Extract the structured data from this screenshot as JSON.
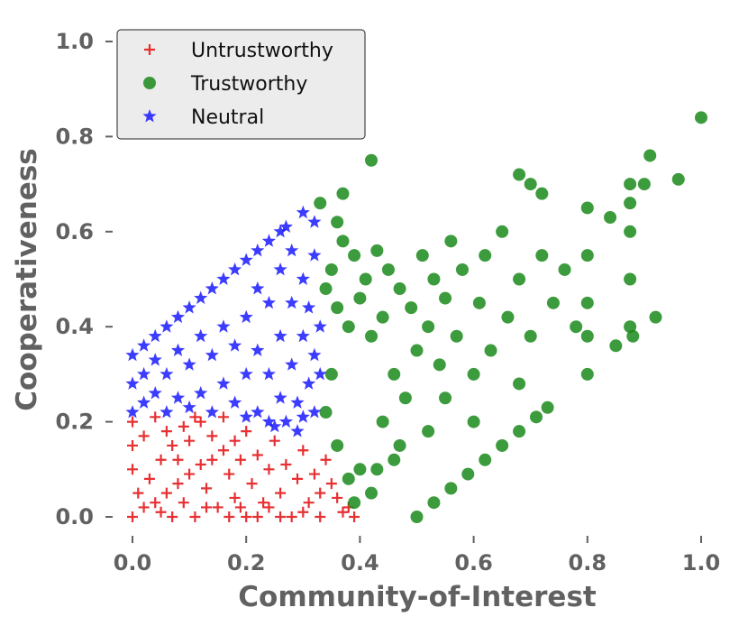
{
  "chart_data": {
    "type": "scatter",
    "title": "",
    "xlabel": "Community-of-Interest",
    "ylabel": "Cooperativeness",
    "xlim": [
      -0.03,
      1.03
    ],
    "ylim": [
      -0.03,
      1.03
    ],
    "xticks": [
      0.0,
      0.2,
      0.4,
      0.6,
      0.8,
      1.0
    ],
    "yticks": [
      0.0,
      0.2,
      0.4,
      0.6,
      0.8,
      1.0
    ],
    "xtick_labels": [
      "0.0",
      "0.2",
      "0.4",
      "0.6",
      "0.8",
      "1.0"
    ],
    "ytick_labels": [
      "0.0",
      "0.2",
      "0.4",
      "0.6",
      "0.8",
      "1.0"
    ],
    "grid": false,
    "legend_position": "top-left",
    "series": [
      {
        "name": "Untrustworthy",
        "marker": "plus",
        "color": "#e41a1c",
        "description": "dense cluster, x 0.0-0.39, y 0.0-0.22, plus diagonal band from (0,0) to (0.2,0.18)",
        "points": [
          [
            0.0,
            0.0
          ],
          [
            0.02,
            0.02
          ],
          [
            0.04,
            0.03
          ],
          [
            0.06,
            0.05
          ],
          [
            0.08,
            0.07
          ],
          [
            0.1,
            0.09
          ],
          [
            0.12,
            0.11
          ],
          [
            0.14,
            0.12
          ],
          [
            0.16,
            0.14
          ],
          [
            0.18,
            0.16
          ],
          [
            0.2,
            0.18
          ],
          [
            0.01,
            0.05
          ],
          [
            0.03,
            0.08
          ],
          [
            0.05,
            0.12
          ],
          [
            0.07,
            0.15
          ],
          [
            0.09,
            0.19
          ],
          [
            0.11,
            0.21
          ],
          [
            0.0,
            0.1
          ],
          [
            0.0,
            0.15
          ],
          [
            0.0,
            0.2
          ],
          [
            0.02,
            0.17
          ],
          [
            0.04,
            0.21
          ],
          [
            0.06,
            0.18
          ],
          [
            0.08,
            0.12
          ],
          [
            0.1,
            0.16
          ],
          [
            0.12,
            0.2
          ],
          [
            0.13,
            0.06
          ],
          [
            0.14,
            0.17
          ],
          [
            0.15,
            0.02
          ],
          [
            0.16,
            0.21
          ],
          [
            0.17,
            0.09
          ],
          [
            0.18,
            0.04
          ],
          [
            0.19,
            0.12
          ],
          [
            0.2,
            0.0
          ],
          [
            0.21,
            0.07
          ],
          [
            0.22,
            0.13
          ],
          [
            0.23,
            0.03
          ],
          [
            0.24,
            0.1
          ],
          [
            0.25,
            0.16
          ],
          [
            0.26,
            0.05
          ],
          [
            0.27,
            0.11
          ],
          [
            0.28,
            0.0
          ],
          [
            0.29,
            0.08
          ],
          [
            0.3,
            0.14
          ],
          [
            0.31,
            0.03
          ],
          [
            0.32,
            0.09
          ],
          [
            0.33,
            0.05
          ],
          [
            0.34,
            0.12
          ],
          [
            0.35,
            0.07
          ],
          [
            0.36,
            0.04
          ],
          [
            0.37,
            0.01
          ],
          [
            0.38,
            0.02
          ],
          [
            0.39,
            0.0
          ],
          [
            0.05,
            0.01
          ],
          [
            0.07,
            0.0
          ],
          [
            0.09,
            0.03
          ],
          [
            0.11,
            0.0
          ],
          [
            0.13,
            0.02
          ],
          [
            0.17,
            0.0
          ],
          [
            0.19,
            0.02
          ],
          [
            0.22,
            0.0
          ],
          [
            0.24,
            0.02
          ],
          [
            0.26,
            0.0
          ],
          [
            0.3,
            0.01
          ],
          [
            0.33,
            0.0
          ]
        ]
      },
      {
        "name": "Trustworthy",
        "marker": "circle",
        "color": "#1a8a1a",
        "description": "dense cluster, x 0.31-0.92, y 0.0-0.84, diagonal band from (0.5,0) to (0.73,0.23), vertical stripes at x 0.8 and 0.875",
        "points": [
          [
            0.5,
            0.0
          ],
          [
            0.53,
            0.03
          ],
          [
            0.56,
            0.06
          ],
          [
            0.59,
            0.09
          ],
          [
            0.62,
            0.12
          ],
          [
            0.65,
            0.15
          ],
          [
            0.68,
            0.18
          ],
          [
            0.71,
            0.21
          ],
          [
            0.73,
            0.23
          ],
          [
            0.34,
            0.48
          ],
          [
            0.35,
            0.52
          ],
          [
            0.36,
            0.44
          ],
          [
            0.37,
            0.58
          ],
          [
            0.38,
            0.4
          ],
          [
            0.39,
            0.55
          ],
          [
            0.4,
            0.46
          ],
          [
            0.41,
            0.5
          ],
          [
            0.42,
            0.38
          ],
          [
            0.43,
            0.56
          ],
          [
            0.44,
            0.42
          ],
          [
            0.45,
            0.52
          ],
          [
            0.46,
            0.3
          ],
          [
            0.47,
            0.48
          ],
          [
            0.48,
            0.25
          ],
          [
            0.49,
            0.44
          ],
          [
            0.5,
            0.35
          ],
          [
            0.51,
            0.55
          ],
          [
            0.52,
            0.4
          ],
          [
            0.53,
            0.5
          ],
          [
            0.54,
            0.32
          ],
          [
            0.55,
            0.46
          ],
          [
            0.56,
            0.58
          ],
          [
            0.57,
            0.38
          ],
          [
            0.58,
            0.52
          ],
          [
            0.6,
            0.3
          ],
          [
            0.61,
            0.45
          ],
          [
            0.62,
            0.55
          ],
          [
            0.63,
            0.35
          ],
          [
            0.65,
            0.6
          ],
          [
            0.66,
            0.42
          ],
          [
            0.68,
            0.5
          ],
          [
            0.7,
            0.38
          ],
          [
            0.72,
            0.55
          ],
          [
            0.74,
            0.45
          ],
          [
            0.76,
            0.52
          ],
          [
            0.78,
            0.4
          ],
          [
            0.8,
            0.3
          ],
          [
            0.8,
            0.38
          ],
          [
            0.8,
            0.45
          ],
          [
            0.8,
            0.55
          ],
          [
            0.8,
            0.65
          ],
          [
            0.875,
            0.4
          ],
          [
            0.875,
            0.5
          ],
          [
            0.875,
            0.6
          ],
          [
            0.875,
            0.66
          ],
          [
            0.875,
            0.7
          ],
          [
            0.9,
            0.7
          ],
          [
            0.91,
            0.76
          ],
          [
            0.92,
            0.42
          ],
          [
            0.96,
            0.71
          ],
          [
            1.0,
            0.84
          ],
          [
            0.42,
            0.75
          ],
          [
            0.37,
            0.68
          ],
          [
            0.33,
            0.66
          ],
          [
            0.36,
            0.62
          ],
          [
            0.44,
            0.2
          ],
          [
            0.4,
            0.1
          ],
          [
            0.42,
            0.05
          ],
          [
            0.38,
            0.08
          ],
          [
            0.46,
            0.12
          ],
          [
            0.52,
            0.18
          ],
          [
            0.55,
            0.25
          ],
          [
            0.6,
            0.2
          ],
          [
            0.68,
            0.28
          ],
          [
            0.7,
            0.7
          ],
          [
            0.68,
            0.72
          ],
          [
            0.72,
            0.68
          ],
          [
            0.85,
            0.36
          ],
          [
            0.88,
            0.38
          ],
          [
            0.84,
            0.63
          ],
          [
            0.35,
            0.3
          ],
          [
            0.34,
            0.22
          ],
          [
            0.36,
            0.15
          ],
          [
            0.39,
            0.03
          ],
          [
            0.43,
            0.1
          ],
          [
            0.47,
            0.15
          ]
        ]
      },
      {
        "name": "Neutral",
        "marker": "star",
        "color": "#1a1aff",
        "description": "dense triangular cluster, x 0.0-0.33, y 0.18-0.65",
        "points": [
          [
            0.0,
            0.22
          ],
          [
            0.0,
            0.28
          ],
          [
            0.0,
            0.34
          ],
          [
            0.02,
            0.24
          ],
          [
            0.02,
            0.3
          ],
          [
            0.02,
            0.36
          ],
          [
            0.04,
            0.26
          ],
          [
            0.04,
            0.33
          ],
          [
            0.04,
            0.38
          ],
          [
            0.06,
            0.22
          ],
          [
            0.06,
            0.3
          ],
          [
            0.06,
            0.4
          ],
          [
            0.08,
            0.25
          ],
          [
            0.08,
            0.35
          ],
          [
            0.08,
            0.42
          ],
          [
            0.1,
            0.23
          ],
          [
            0.1,
            0.32
          ],
          [
            0.1,
            0.44
          ],
          [
            0.12,
            0.26
          ],
          [
            0.12,
            0.38
          ],
          [
            0.12,
            0.46
          ],
          [
            0.14,
            0.22
          ],
          [
            0.14,
            0.34
          ],
          [
            0.14,
            0.48
          ],
          [
            0.16,
            0.28
          ],
          [
            0.16,
            0.4
          ],
          [
            0.16,
            0.5
          ],
          [
            0.18,
            0.24
          ],
          [
            0.18,
            0.36
          ],
          [
            0.18,
            0.52
          ],
          [
            0.2,
            0.21
          ],
          [
            0.2,
            0.3
          ],
          [
            0.2,
            0.42
          ],
          [
            0.2,
            0.54
          ],
          [
            0.22,
            0.22
          ],
          [
            0.22,
            0.35
          ],
          [
            0.22,
            0.48
          ],
          [
            0.22,
            0.56
          ],
          [
            0.24,
            0.2
          ],
          [
            0.24,
            0.3
          ],
          [
            0.24,
            0.45
          ],
          [
            0.24,
            0.58
          ],
          [
            0.26,
            0.25
          ],
          [
            0.26,
            0.38
          ],
          [
            0.26,
            0.52
          ],
          [
            0.26,
            0.6
          ],
          [
            0.27,
            0.2
          ],
          [
            0.28,
            0.32
          ],
          [
            0.28,
            0.45
          ],
          [
            0.28,
            0.56
          ],
          [
            0.29,
            0.24
          ],
          [
            0.3,
            0.38
          ],
          [
            0.3,
            0.5
          ],
          [
            0.3,
            0.64
          ],
          [
            0.31,
            0.28
          ],
          [
            0.31,
            0.44
          ],
          [
            0.32,
            0.62
          ],
          [
            0.32,
            0.55
          ],
          [
            0.33,
            0.4
          ],
          [
            0.33,
            0.3
          ],
          [
            0.25,
            0.19
          ],
          [
            0.29,
            0.18
          ],
          [
            0.3,
            0.21
          ],
          [
            0.32,
            0.22
          ],
          [
            0.32,
            0.34
          ],
          [
            0.27,
            0.61
          ]
        ]
      }
    ]
  }
}
